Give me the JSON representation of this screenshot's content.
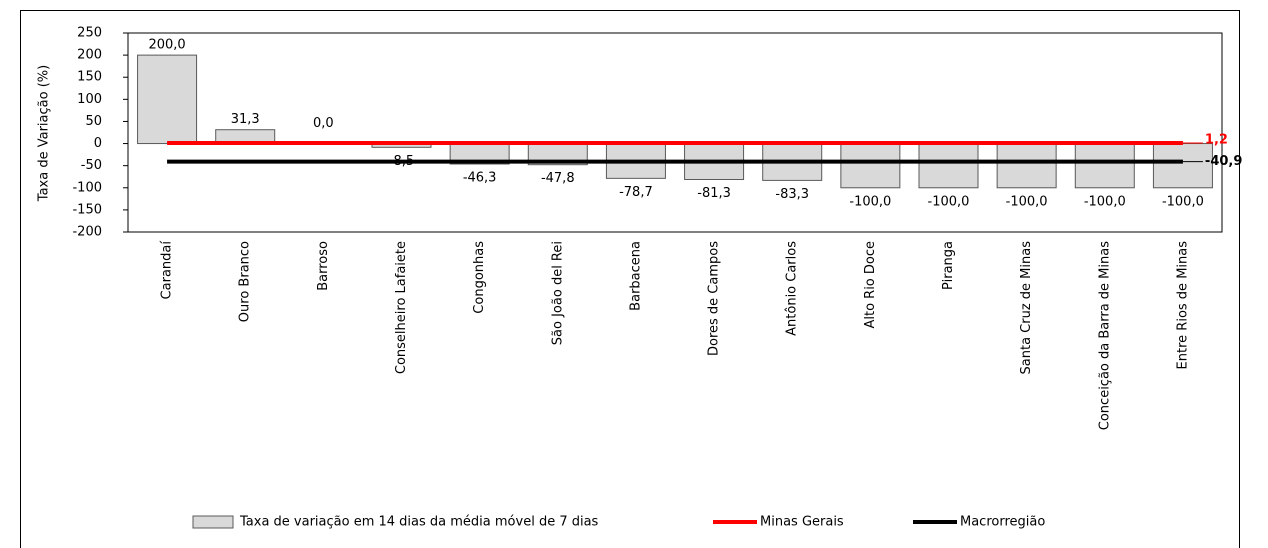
{
  "chart_data": {
    "type": "bar",
    "y_label": "Taxa de Variação (%)",
    "categories": [
      "Carandaí",
      "Ouro Branco",
      "Barroso",
      "Conselheiro Lafaiete",
      "Congonhas",
      "São João del Rei",
      "Barbacena",
      "Dores de Campos",
      "Antônio Carlos",
      "Alto Rio Doce",
      "Piranga",
      "Santa Cruz de Minas",
      "Conceição da Barra de Minas",
      "Entre Rios de Minas"
    ],
    "series": [
      {
        "name": "Taxa de variação em 14 dias da média móvel de 7 dias",
        "color": "#d9d9d9",
        "values": [
          200.0,
          31.3,
          0.0,
          -8.5,
          -46.3,
          -47.8,
          -78.7,
          -81.3,
          -83.3,
          -100.0,
          -100.0,
          -100.0,
          -100.0,
          -100.0
        ],
        "value_labels": [
          "200,0",
          "31,3",
          "0,0",
          "-8,5",
          "-46,3",
          "-47,8",
          "-78,7",
          "-81,3",
          "-83,3",
          "-100,0",
          "-100,0",
          "-100,0",
          "-100,0",
          "-100,0"
        ]
      },
      {
        "name": "Minas Gerais",
        "color": "#ff0000",
        "type": "line",
        "value": 1.2,
        "value_label": "1,2"
      },
      {
        "name": "Macrorregião",
        "color": "#000000",
        "type": "line",
        "value": -40.9,
        "value_label": "-40,9"
      }
    ],
    "ylim": [
      -200,
      250
    ],
    "yticks": [
      250,
      200,
      150,
      100,
      50,
      0,
      -50,
      -100,
      -150,
      -200
    ],
    "legend": "bottom"
  }
}
